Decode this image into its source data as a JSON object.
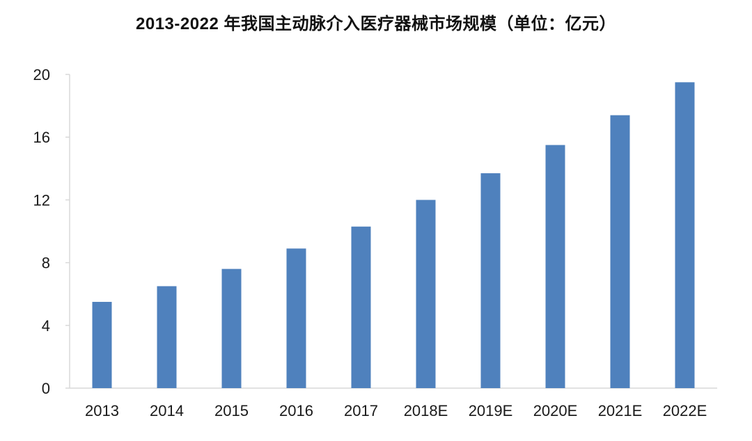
{
  "chart_data": {
    "type": "bar",
    "title": "2013-2022 年我国主动脉介入医疗器械市场规模（单位：亿元）",
    "xlabel": "",
    "ylabel": "",
    "categories": [
      "2013",
      "2014",
      "2015",
      "2016",
      "2017",
      "2018E",
      "2019E",
      "2020E",
      "2021E",
      "2022E"
    ],
    "values": [
      5.5,
      6.5,
      7.6,
      8.9,
      10.3,
      12.0,
      13.7,
      15.5,
      17.4,
      19.5
    ],
    "ylim": [
      0,
      20
    ],
    "yticks": [
      "0",
      "4",
      "8",
      "12",
      "16",
      "20"
    ],
    "grid": false,
    "legend": "none",
    "bar_color": "#4F81BD",
    "axis_color": "#D9D9D9"
  }
}
